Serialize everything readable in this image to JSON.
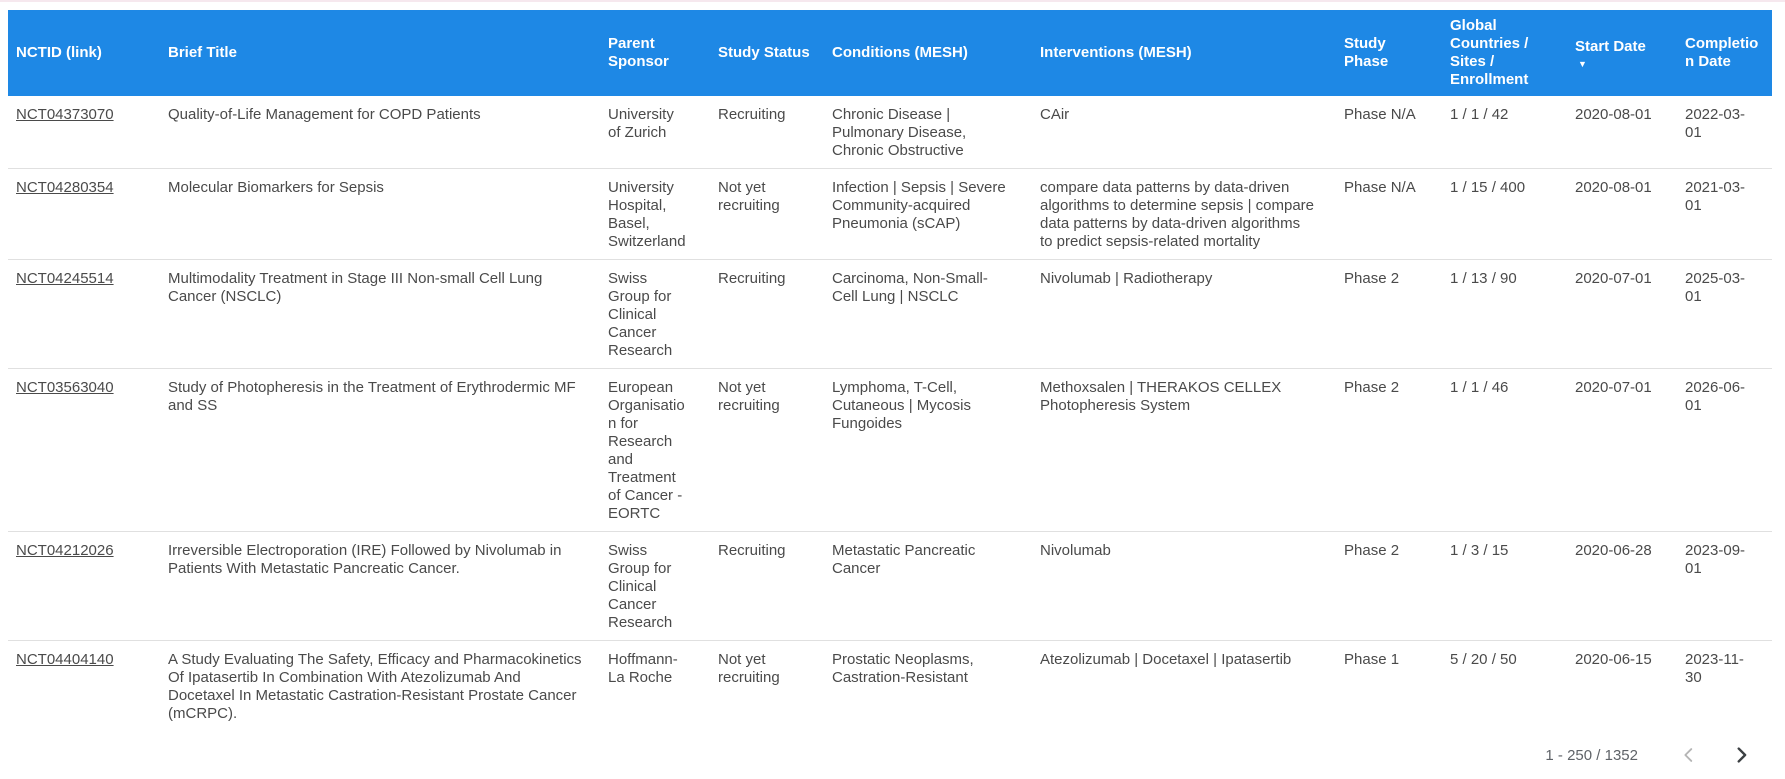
{
  "theme": {
    "header_bg": "#1e88e5",
    "header_text": "#ffffff",
    "body_text": "#4a4a4a",
    "row_border": "#e0e0e0",
    "top_edge_line": "#f6e8ee",
    "pagination_text": "#5f6368",
    "chevron_disabled": "#b5b5b5",
    "chevron_enabled": "#3c4043"
  },
  "table": {
    "columns": [
      {
        "key": "nctid",
        "label": "NCTID (link)"
      },
      {
        "key": "brief_title",
        "label": "Brief Title"
      },
      {
        "key": "parent_sponsor",
        "label": "Parent Sponsor"
      },
      {
        "key": "study_status",
        "label": "Study Status"
      },
      {
        "key": "conditions",
        "label": "Conditions (MESH)"
      },
      {
        "key": "interventions",
        "label": "Interventions (MESH)"
      },
      {
        "key": "study_phase",
        "label": "Study Phase"
      },
      {
        "key": "global_counts",
        "label": "Global Countries / Sites / Enrollment"
      },
      {
        "key": "start_date",
        "label": "Start Date",
        "sorted": "desc",
        "sort_icon": "sort-desc-icon"
      },
      {
        "key": "completion_date",
        "label": "Completion Date"
      }
    ],
    "rows": [
      {
        "nctid": "NCT04373070",
        "brief_title": "Quality-of-Life Management for COPD Patients",
        "parent_sponsor": "University of Zurich",
        "study_status": "Recruiting",
        "conditions": "Chronic Disease | Pulmonary Disease, Chronic Obstructive",
        "interventions": "CAir",
        "study_phase": "Phase N/A",
        "global_counts": "1 / 1 / 42",
        "start_date": "2020-08-01",
        "completion_date": "2022-03-01"
      },
      {
        "nctid": "NCT04280354",
        "brief_title": "Molecular Biomarkers for Sepsis",
        "parent_sponsor": "University Hospital, Basel, Switzerland",
        "study_status": "Not yet recruiting",
        "conditions": "Infection | Sepsis | Severe Community-acquired Pneumonia (sCAP)",
        "interventions": "compare data patterns by data-driven algorithms to determine sepsis | compare data patterns by data-driven algorithms to predict sepsis-related mortality",
        "study_phase": "Phase N/A",
        "global_counts": "1 / 15 / 400",
        "start_date": "2020-08-01",
        "completion_date": "2021-03-01"
      },
      {
        "nctid": "NCT04245514",
        "brief_title": "Multimodality Treatment in Stage III Non-small Cell Lung Cancer (NSCLC)",
        "parent_sponsor": "Swiss Group for Clinical Cancer Research",
        "study_status": "Recruiting",
        "conditions": "Carcinoma, Non-Small-Cell Lung | NSCLC",
        "interventions": "Nivolumab | Radiotherapy",
        "study_phase": "Phase 2",
        "global_counts": "1 / 13 / 90",
        "start_date": "2020-07-01",
        "completion_date": "2025-03-01"
      },
      {
        "nctid": "NCT03563040",
        "brief_title": "Study of Photopheresis in the Treatment of Erythrodermic MF and SS",
        "parent_sponsor": "European Organisation for Research and Treatment of Cancer - EORTC",
        "study_status": "Not yet recruiting",
        "conditions": "Lymphoma, T-Cell, Cutaneous | Mycosis Fungoides",
        "interventions": "Methoxsalen | THERAKOS CELLEX Photopheresis System",
        "study_phase": "Phase 2",
        "global_counts": "1 / 1 / 46",
        "start_date": "2020-07-01",
        "completion_date": "2026-06-01"
      },
      {
        "nctid": "NCT04212026",
        "brief_title": "Irreversible Electroporation (IRE) Followed by Nivolumab in Patients With Metastatic Pancreatic Cancer.",
        "parent_sponsor": "Swiss Group for Clinical Cancer Research",
        "study_status": "Recruiting",
        "conditions": "Metastatic Pancreatic Cancer",
        "interventions": "Nivolumab",
        "study_phase": "Phase 2",
        "global_counts": "1 / 3 / 15",
        "start_date": "2020-06-28",
        "completion_date": "2023-09-01"
      },
      {
        "nctid": "NCT04404140",
        "brief_title": "A Study Evaluating The Safety, Efficacy and Pharmacokinetics Of Ipatasertib In Combination With Atezolizumab And Docetaxel In Metastatic Castration-Resistant Prostate Cancer (mCRPC).",
        "parent_sponsor": "Hoffmann-La Roche",
        "study_status": "Not yet recruiting",
        "conditions": "Prostatic Neoplasms, Castration-Resistant",
        "interventions": "Atezolizumab | Docetaxel | Ipatasertib",
        "study_phase": "Phase 1",
        "global_counts": "5 / 20 / 50",
        "start_date": "2020-06-15",
        "completion_date": "2023-11-30"
      }
    ]
  },
  "pagination": {
    "range_label": "1 - 250 / 1352",
    "prev_icon": "chevron-left-icon",
    "next_icon": "chevron-right-icon",
    "prev_enabled": false,
    "next_enabled": true
  }
}
